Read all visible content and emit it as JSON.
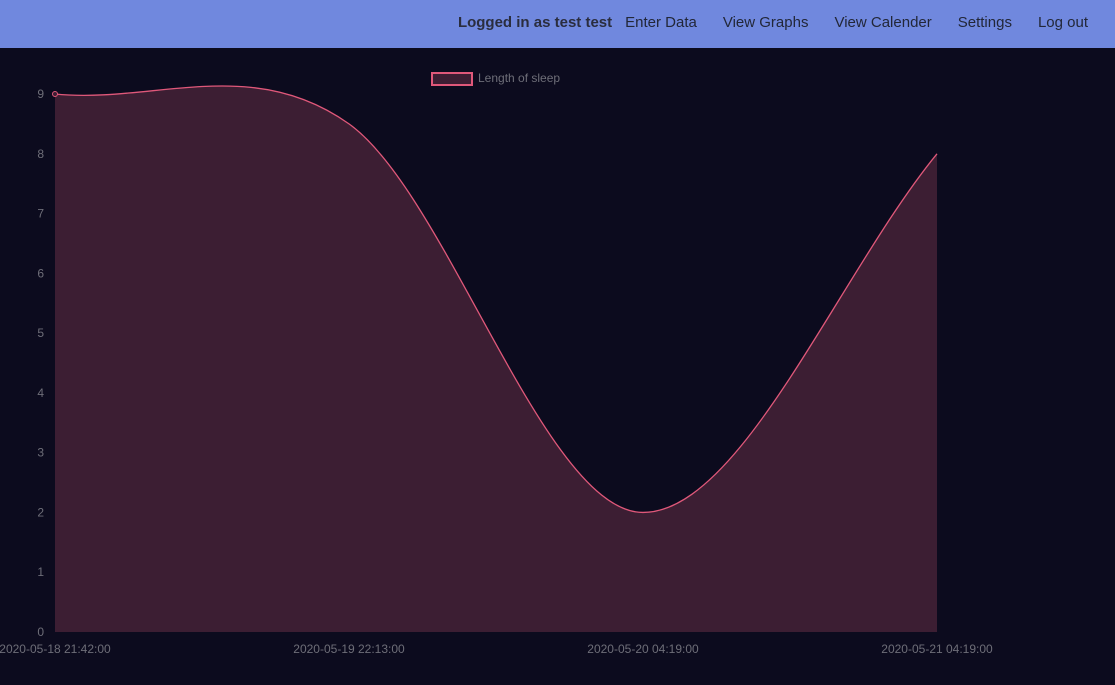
{
  "header": {
    "user_label": "Logged in as test test",
    "nav": [
      {
        "label": "Enter Data"
      },
      {
        "label": "View Graphs"
      },
      {
        "label": "View Calender"
      },
      {
        "label": "Settings"
      },
      {
        "label": "Log out"
      }
    ]
  },
  "colors": {
    "header_bg": "#7088de",
    "page_bg": "#0c0b1e",
    "line": "#e0587a",
    "fill": "#3c1e33",
    "tick_text": "#6e6e78"
  },
  "chart_data": {
    "type": "area",
    "x": [
      "2020-05-18 21:42:00",
      "2020-05-19 22:13:00",
      "2020-05-20 04:19:00",
      "2020-05-21 04:19:00"
    ],
    "series": [
      {
        "name": "Length of sleep",
        "values": [
          9,
          8.5,
          2,
          8
        ]
      }
    ],
    "ylim": [
      0,
      9
    ],
    "yticks": [
      "0",
      "1",
      "2",
      "3",
      "4",
      "5",
      "6",
      "7",
      "8",
      "9"
    ],
    "legend_position": "top-center",
    "grid": false
  }
}
